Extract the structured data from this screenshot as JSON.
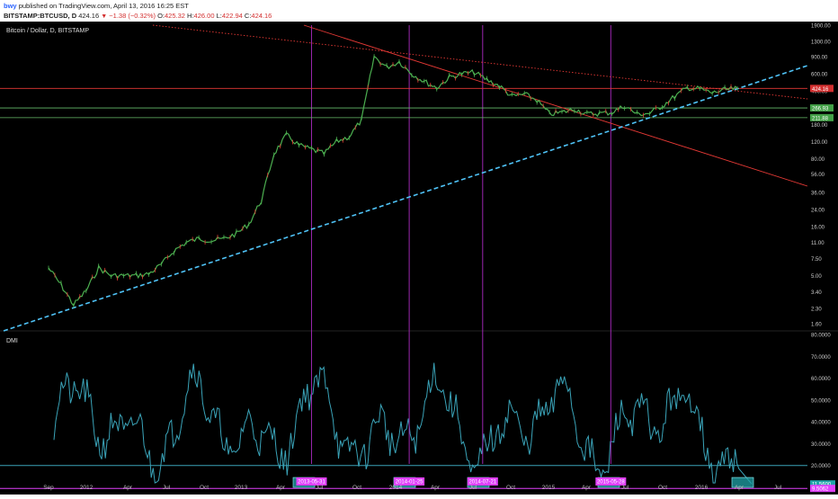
{
  "header": {
    "author": "bwy",
    "published_text": "published on TradingView.com, April 13, 2016 16:25 EST",
    "symbol": "BITSTAMP:BTCUSD, D",
    "last": "424.16",
    "change": "−1.38 (−0.32%)",
    "open_label": "O:",
    "open": "425.32",
    "high_label": "H:",
    "high": "426.00",
    "low_label": "L:",
    "low": "422.94",
    "close_label": "C:",
    "close": "424.16"
  },
  "colors": {
    "background": "#000000",
    "candles_up": "#4caf50",
    "candles_down": "#e53935",
    "red_line": "#e53935",
    "blue_dashed": "#4fc3f7",
    "green_line": "#66bb6a",
    "purple_line": "#9c27b0",
    "dmi_line": "#3aa3b8",
    "magenta": "#e040fb",
    "price_box_red": "#d32f2f",
    "price_box_green": "#43a047"
  },
  "chart_data": [
    {
      "type": "line",
      "title": "Bitcoin / Dollar, D, BITSTAMP",
      "scale": "log",
      "y_ticks": [
        "1900.00",
        "1300.00",
        "900.00",
        "600.00",
        "400.00",
        "270.00",
        "180.00",
        "120.00",
        "80.00",
        "56.00",
        "36.00",
        "24.00",
        "16.00",
        "11.00",
        "7.50",
        "5.00",
        "3.40",
        "2.30",
        "1.60"
      ],
      "x_ticks": [
        "Sep",
        "2012",
        "Apr",
        "Jul",
        "Oct",
        "2013",
        "Apr",
        "Jul",
        "Oct",
        "2014",
        "Apr",
        "Jul",
        "Oct",
        "2015",
        "Apr",
        "Jul",
        "Oct",
        "2016",
        "Apr",
        "Jul"
      ],
      "price_labels": [
        {
          "value": "424.16",
          "color": "red"
        },
        {
          "value": "266.93",
          "color": "green"
        },
        {
          "value": "211.88",
          "color": "green"
        }
      ],
      "series": [
        {
          "x": [
            "2011-09",
            "2011-10",
            "2011-11",
            "2011-12",
            "2012-01",
            "2012-02",
            "2012-03",
            "2012-04",
            "2012-05",
            "2012-06",
            "2012-07",
            "2012-08",
            "2012-09",
            "2012-10",
            "2012-11",
            "2012-12",
            "2013-01",
            "2013-02",
            "2013-03",
            "2013-04",
            "2013-05",
            "2013-06",
            "2013-07",
            "2013-08",
            "2013-09",
            "2013-10",
            "2013-11",
            "2013-12",
            "2014-01",
            "2014-02",
            "2014-03",
            "2014-04",
            "2014-05",
            "2014-06",
            "2014-07",
            "2014-08",
            "2014-09",
            "2014-10",
            "2014-11",
            "2014-12",
            "2015-01",
            "2015-02",
            "2015-03",
            "2015-04",
            "2015-05",
            "2015-06",
            "2015-07",
            "2015-08",
            "2015-09",
            "2015-10",
            "2015-11",
            "2015-12",
            "2016-01",
            "2016-02",
            "2016-03",
            "2016-04"
          ],
          "y": [
            6,
            4,
            2.5,
            3.5,
            6,
            5,
            5,
            5,
            5.2,
            6.5,
            9,
            11,
            12,
            11.5,
            12,
            13.5,
            17,
            30,
            90,
            140,
            110,
            100,
            90,
            120,
            135,
            200,
            900,
            700,
            800,
            600,
            500,
            430,
            550,
            600,
            620,
            520,
            450,
            350,
            370,
            320,
            230,
            240,
            260,
            230,
            235,
            240,
            280,
            230,
            235,
            280,
            350,
            430,
            420,
            380,
            410,
            424.16
          ]
        }
      ],
      "lines": [
        {
          "type": "trend",
          "style": "dashed",
          "color": "blue_dashed"
        },
        {
          "type": "trend",
          "style": "solid",
          "color": "red_line"
        },
        {
          "type": "trend",
          "style": "dotted",
          "color": "red_line"
        },
        {
          "type": "horizontal",
          "value": 424.16,
          "color": "red_line"
        },
        {
          "type": "horizontal",
          "value": 266.93,
          "color": "green_line"
        },
        {
          "type": "horizontal",
          "value": 211.88,
          "color": "green_line"
        }
      ],
      "vertical_markers": [
        "2013-05-31",
        "2014-01-25",
        "2014-07-21",
        "2015-05-28"
      ]
    },
    {
      "type": "line",
      "title": "DMI",
      "y_ticks": [
        "80.0000",
        "70.0000",
        "60.0000",
        "50.0000",
        "40.0000",
        "30.0000",
        "20.0000",
        "10.0000"
      ],
      "levels": [
        {
          "value": 20.0,
          "color": "dmi_line"
        },
        {
          "value": 9.5062,
          "color": "magenta"
        }
      ],
      "last_value": "11.5600",
      "level_label": "9.5062",
      "date_labels": [
        "2013-05-31",
        "2014-01-25",
        "2014-07-21",
        "2015-05-28"
      ]
    }
  ]
}
